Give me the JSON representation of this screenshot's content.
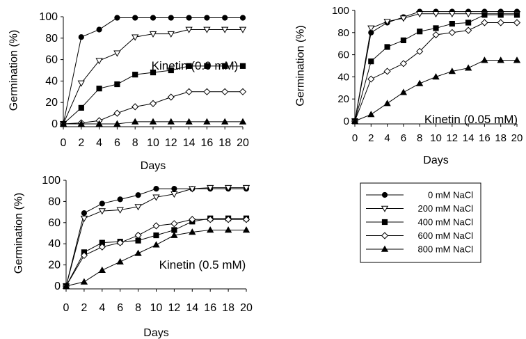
{
  "chart_data": [
    {
      "type": "line",
      "annotation": "Kinetin (0.0 mM)",
      "xlabel": "Days",
      "ylabel": "Germination (%)",
      "xlim": [
        0,
        20
      ],
      "ylim": [
        0,
        100
      ],
      "x_ticks": [
        0,
        2,
        4,
        6,
        8,
        10,
        12,
        14,
        16,
        18,
        20
      ],
      "y_ticks": [
        0,
        20,
        40,
        60,
        80,
        100
      ],
      "x": [
        0,
        2,
        4,
        6,
        8,
        10,
        12,
        14,
        16,
        18,
        20
      ],
      "series": [
        {
          "name": "0 mM NaCl",
          "marker": "circle-filled",
          "values": [
            0,
            81,
            88,
            99,
            99,
            99,
            99,
            99,
            99,
            99,
            99
          ]
        },
        {
          "name": "200 mM NaCl",
          "marker": "triangle-down-open",
          "values": [
            0,
            38,
            59,
            66,
            81,
            84,
            84,
            88,
            88,
            88,
            88
          ]
        },
        {
          "name": "400 mM NaCl",
          "marker": "square-filled",
          "values": [
            0,
            15,
            33,
            37,
            46,
            48,
            50,
            54,
            54,
            54,
            54
          ]
        },
        {
          "name": "600 mM NaCl",
          "marker": "diamond-open",
          "values": [
            0,
            1,
            3,
            10,
            16,
            19,
            25,
            30,
            30,
            30,
            30
          ]
        },
        {
          "name": "800 mM NaCl",
          "marker": "triangle-up-filled",
          "values": [
            0,
            0,
            0,
            0,
            2,
            2,
            2,
            2,
            2,
            2,
            2
          ]
        }
      ]
    },
    {
      "type": "line",
      "annotation": "Kinetin (0.05 mM)",
      "xlabel": "Days",
      "ylabel": "Germination (%)",
      "xlim": [
        0,
        20
      ],
      "ylim": [
        0,
        100
      ],
      "x_ticks": [
        0,
        2,
        4,
        6,
        8,
        10,
        12,
        14,
        16,
        18,
        20
      ],
      "y_ticks": [
        0,
        20,
        40,
        60,
        80,
        100
      ],
      "x": [
        0,
        2,
        4,
        6,
        8,
        10,
        12,
        14,
        16,
        18,
        20
      ],
      "series": [
        {
          "name": "0 mM NaCl",
          "marker": "circle-filled",
          "values": [
            0,
            80,
            89,
            94,
            99,
            99,
            99,
            99,
            99,
            99,
            99
          ]
        },
        {
          "name": "200 mM NaCl",
          "marker": "triangle-down-open",
          "values": [
            0,
            84,
            90,
            93,
            97,
            97,
            97,
            97,
            97,
            97,
            97
          ]
        },
        {
          "name": "400 mM NaCl",
          "marker": "square-filled",
          "values": [
            0,
            54,
            67,
            73,
            81,
            84,
            88,
            89,
            96,
            96,
            96
          ]
        },
        {
          "name": "600 mM NaCl",
          "marker": "diamond-open",
          "values": [
            0,
            38,
            45,
            52,
            63,
            78,
            80,
            82,
            89,
            89,
            89
          ]
        },
        {
          "name": "800 mM NaCl",
          "marker": "triangle-up-filled",
          "values": [
            0,
            6,
            16,
            26,
            34,
            40,
            45,
            48,
            55,
            55,
            55
          ]
        }
      ]
    },
    {
      "type": "line",
      "annotation": "Kinetin (0.5 mM)",
      "xlabel": "Days",
      "ylabel": "Germination (%)",
      "xlim": [
        0,
        20
      ],
      "ylim": [
        0,
        100
      ],
      "x_ticks": [
        0,
        2,
        4,
        6,
        8,
        10,
        12,
        14,
        16,
        18,
        20
      ],
      "y_ticks": [
        0,
        20,
        40,
        60,
        80,
        100
      ],
      "x": [
        0,
        2,
        4,
        6,
        8,
        10,
        12,
        14,
        16,
        18,
        20
      ],
      "series": [
        {
          "name": "0 mM NaCl",
          "marker": "circle-filled",
          "values": [
            0,
            69,
            78,
            82,
            86,
            92,
            92,
            92,
            92,
            92,
            92
          ]
        },
        {
          "name": "200 mM NaCl",
          "marker": "triangle-down-open",
          "values": [
            0,
            64,
            71,
            72,
            75,
            84,
            87,
            92,
            93,
            93,
            93
          ]
        },
        {
          "name": "400 mM NaCl",
          "marker": "square-filled",
          "values": [
            0,
            32,
            41,
            42,
            43,
            48,
            53,
            61,
            64,
            64,
            64
          ]
        },
        {
          "name": "600 mM NaCl",
          "marker": "diamond-open",
          "values": [
            0,
            29,
            37,
            41,
            48,
            57,
            59,
            63,
            63,
            63,
            63
          ]
        },
        {
          "name": "800 mM NaCl",
          "marker": "triangle-up-filled",
          "values": [
            0,
            4,
            15,
            23,
            31,
            39,
            48,
            51,
            53,
            53,
            53
          ]
        }
      ]
    }
  ],
  "legend": {
    "placement": "bottom-right",
    "entries": [
      {
        "label": "0 mM NaCl",
        "marker": "circle-filled"
      },
      {
        "label": "200 mM NaCl",
        "marker": "triangle-down-open"
      },
      {
        "label": "400 mM NaCl",
        "marker": "square-filled"
      },
      {
        "label": "600 mM NaCl",
        "marker": "diamond-open"
      },
      {
        "label": "800 mM NaCl",
        "marker": "triangle-up-filled"
      }
    ]
  },
  "colors": {
    "line": "#000000",
    "background": "#ffffff"
  }
}
